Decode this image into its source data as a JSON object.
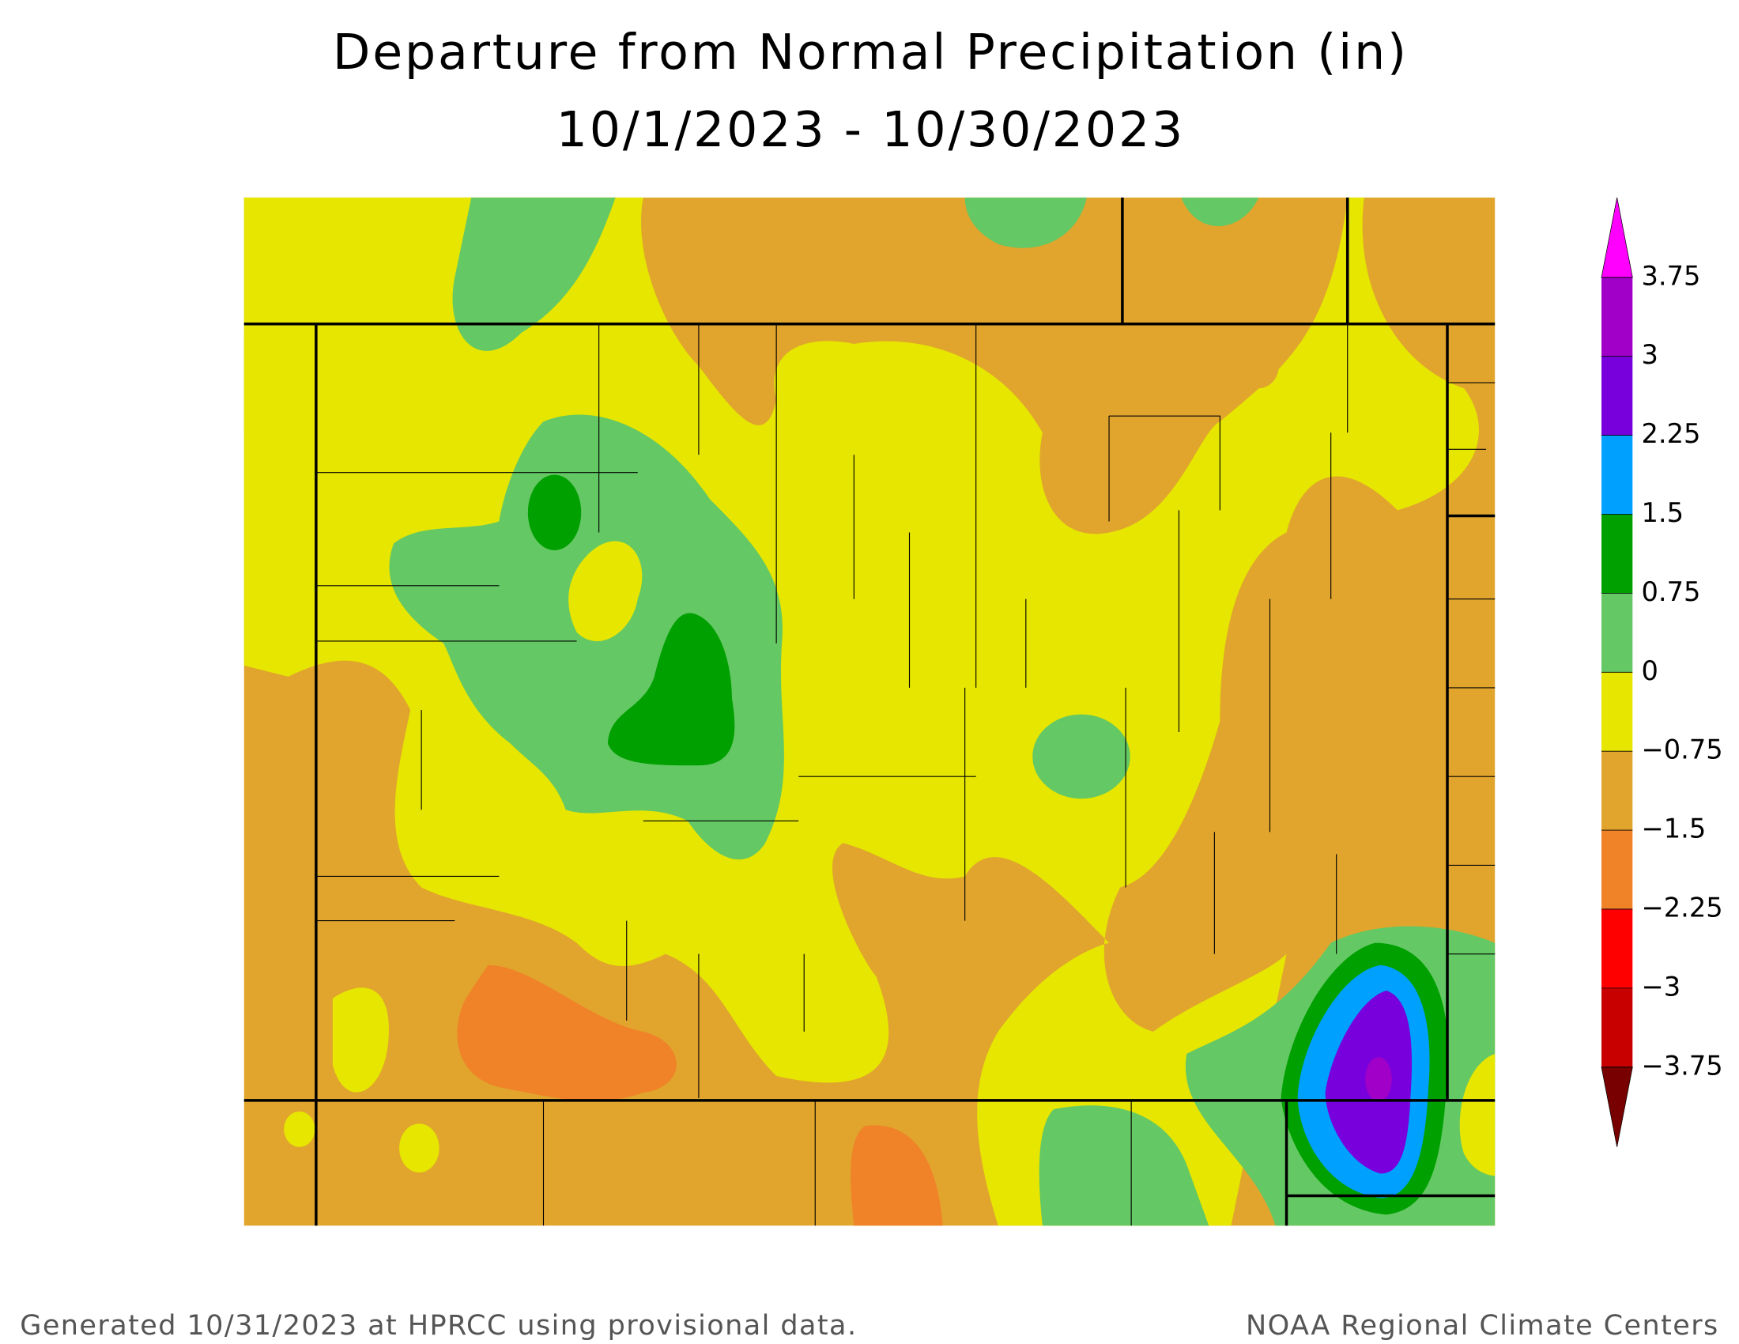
{
  "title": [
    "Departure from Normal Precipitation (in)",
    "10/1/2023 - 10/30/2023"
  ],
  "legend": {
    "levels": [
      3.75,
      3,
      2.25,
      1.5,
      0.75,
      0,
      {
        "value": -0.75,
        "label": "−0.75"
      },
      {
        "value": -1.5,
        "label": "−1.5"
      },
      {
        "value": -2.25,
        "label": "−2.25"
      },
      {
        "value": -3,
        "label": "−3"
      },
      {
        "value": -3.75,
        "label": "−3.75"
      }
    ],
    "colors": [
      "#a000c8",
      "#7800dc",
      "#00a0ff",
      "#00a000",
      "#64c864",
      "#e6e600",
      "#e1a52d",
      "#f08228",
      "#ff0000",
      "#c80000"
    ],
    "over_color": "#ff00ff",
    "under_color": "#780000"
  },
  "footer": {
    "left": "Generated 10/31/2023 at HPRCC using provisional data.",
    "right": "NOAA Regional Climate Centers"
  }
}
